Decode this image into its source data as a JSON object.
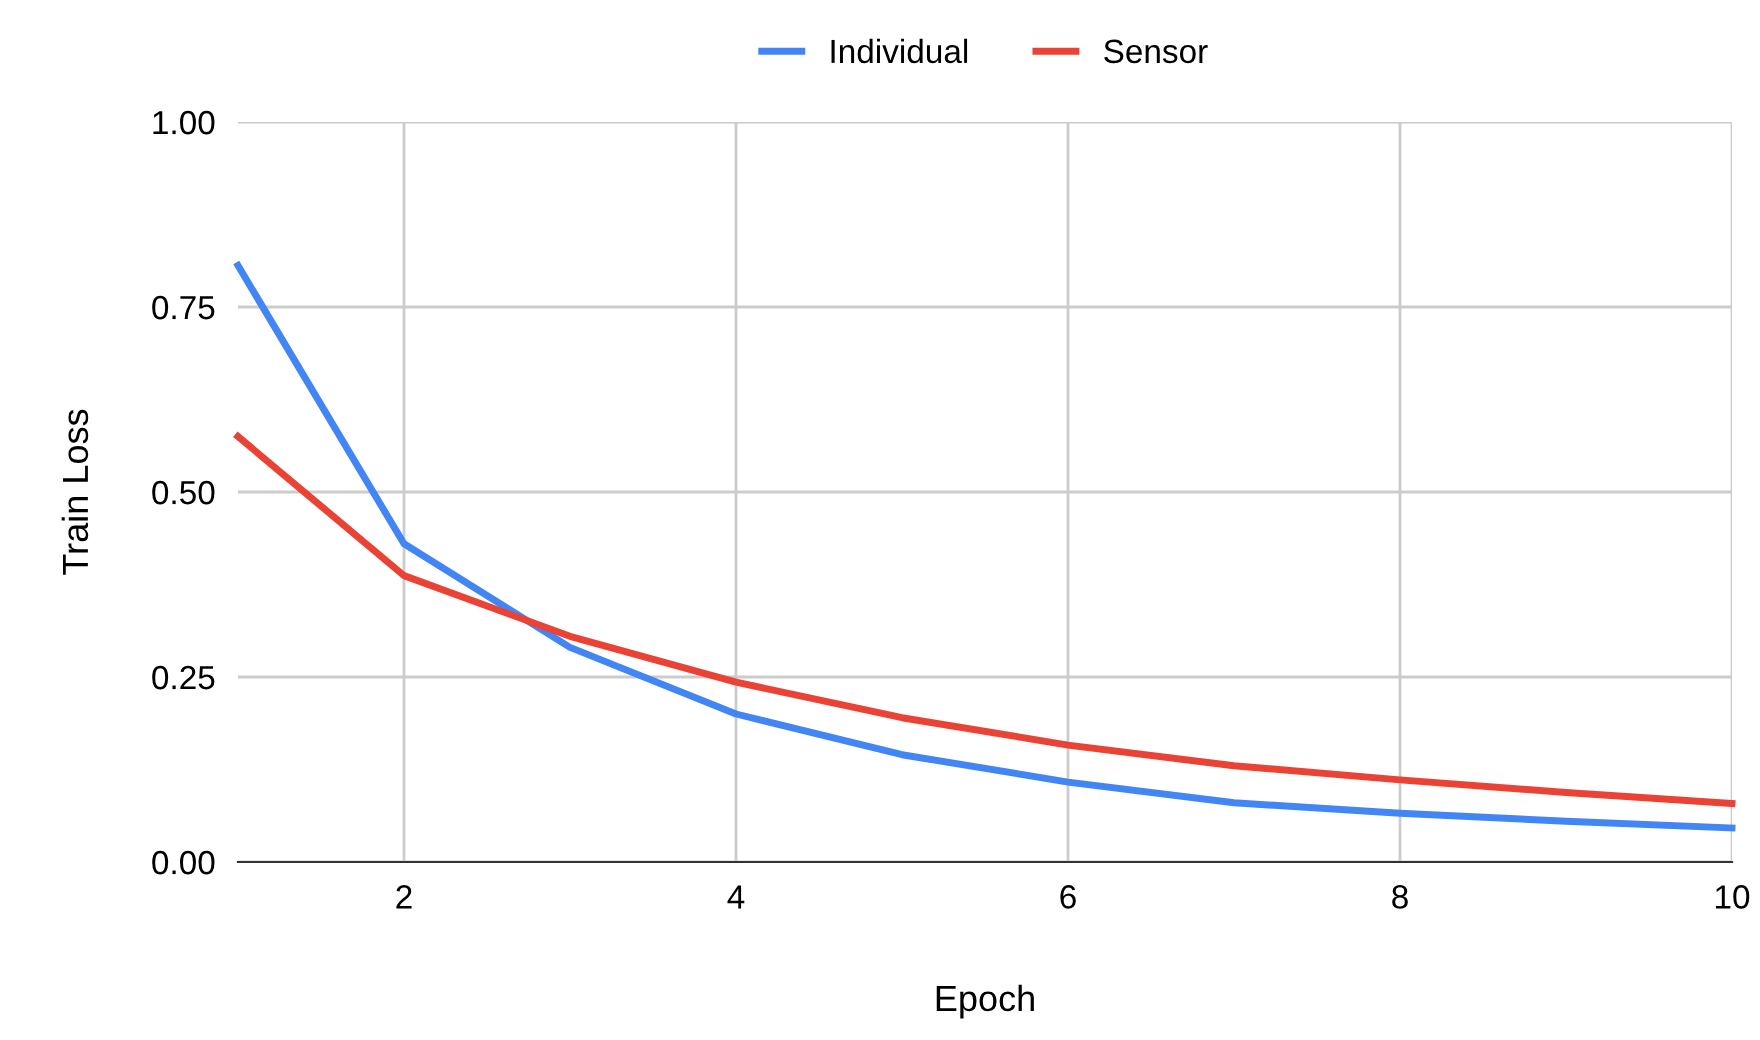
{
  "chart_data": {
    "type": "line",
    "xlabel": "Epoch",
    "ylabel": "Train Loss",
    "x": [
      1,
      2,
      3,
      4,
      5,
      6,
      7,
      8,
      9,
      10
    ],
    "series": [
      {
        "name": "Individual",
        "color": "#4285f4",
        "values": [
          0.806,
          0.43,
          0.29,
          0.2,
          0.145,
          0.108,
          0.08,
          0.066,
          0.055,
          0.046
        ]
      },
      {
        "name": "Sensor",
        "color": "#ea4335",
        "values": [
          0.575,
          0.387,
          0.305,
          0.243,
          0.195,
          0.158,
          0.13,
          0.111,
          0.094,
          0.079
        ]
      }
    ],
    "xlim": [
      1,
      10
    ],
    "xticks": [
      2,
      4,
      6,
      8,
      10
    ],
    "ylim": [
      0,
      1
    ],
    "yticks": [
      {
        "value": 0,
        "label": "0.00"
      },
      {
        "value": 0.25,
        "label": "0.25"
      },
      {
        "value": 0.5,
        "label": "0.50"
      },
      {
        "value": 0.75,
        "label": "0.75"
      },
      {
        "value": 1,
        "label": "1.00"
      }
    ],
    "grid": true,
    "legend": "top",
    "marker": "none",
    "line_style": "solid"
  }
}
